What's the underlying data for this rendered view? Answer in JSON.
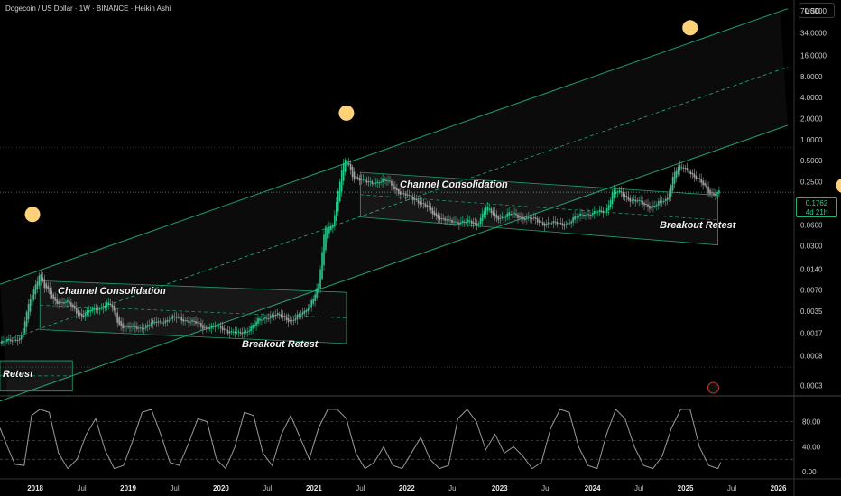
{
  "header": {
    "title": "Dogecoin / US Dollar · 1W · BINANCE · Heikin Ashi"
  },
  "currency": "USD",
  "price_label": {
    "price": "0.1762",
    "countdown": "4d 21h"
  },
  "annotations": {
    "retest_left": "Retest",
    "channel_consolidation_1": "Channel Consolidation",
    "breakout_retest_1": "Breakout Retest",
    "channel_consolidation_2": "Channel Consolidation",
    "breakout_retest_2": "Breakout Retest"
  },
  "colors": {
    "background": "#000000",
    "candle_up": "#26c98a",
    "candle_down": "#9e9e9e",
    "channel": "#1e9e74",
    "indicator": "#9a9a9a",
    "grid": "#2a2a2a",
    "marker": "#ffd27a"
  },
  "chart_data": [
    {
      "type": "candlestick",
      "title": "Dogecoin / US Dollar · 1W · BINANCE · Heikin Ashi",
      "scale": "log",
      "y_ticks": [
        70,
        34,
        16,
        8,
        4,
        2,
        1,
        0.5,
        0.25,
        0.125,
        0.06,
        0.03,
        0.014,
        0.007,
        0.0035,
        0.0017,
        0.0008,
        0.0003
      ],
      "y_tick_labels": [
        "70.0000",
        "34.0000",
        "16.0000",
        "8.0000",
        "4.0000",
        "2.0000",
        "1.0000",
        "0.5000",
        "0.2500",
        "0.1250",
        "0.0600",
        "0.0300",
        "0.0140",
        "0.0070",
        "0.0035",
        "0.0017",
        "0.0008",
        "0.0003"
      ],
      "x_ticks": [
        "2018",
        "Jul",
        "2019",
        "Jul",
        "2020",
        "Jul",
        "2021",
        "Jul",
        "2022",
        "Jul",
        "2023",
        "Jul",
        "2024",
        "Jul",
        "2025",
        "Jul",
        "2026"
      ],
      "x_tick_values": [
        2018.0,
        2018.5,
        2019.0,
        2019.5,
        2020.0,
        2020.5,
        2021.0,
        2021.5,
        2022.0,
        2022.5,
        2023.0,
        2023.5,
        2024.0,
        2024.5,
        2025.0,
        2025.5,
        2026.0
      ],
      "x_range": [
        2017.62,
        2026.17
      ],
      "y_range": [
        0.00022,
        100
      ],
      "price_path": [
        [
          2017.62,
          0.0012
        ],
        [
          2017.85,
          0.0015
        ],
        [
          2017.95,
          0.0055
        ],
        [
          2018.05,
          0.013
        ],
        [
          2018.1,
          0.0075
        ],
        [
          2018.2,
          0.005
        ],
        [
          2018.35,
          0.0045
        ],
        [
          2018.5,
          0.003
        ],
        [
          2018.65,
          0.0038
        ],
        [
          2018.8,
          0.0045
        ],
        [
          2018.9,
          0.0023
        ],
        [
          2019.0,
          0.002
        ],
        [
          2019.1,
          0.002
        ],
        [
          2019.3,
          0.0024
        ],
        [
          2019.5,
          0.0028
        ],
        [
          2019.6,
          0.0027
        ],
        [
          2019.8,
          0.0021
        ],
        [
          2020.0,
          0.002
        ],
        [
          2020.2,
          0.0016
        ],
        [
          2020.4,
          0.0025
        ],
        [
          2020.55,
          0.0032
        ],
        [
          2020.75,
          0.0026
        ],
        [
          2020.9,
          0.0033
        ],
        [
          2021.05,
          0.008
        ],
        [
          2021.12,
          0.055
        ],
        [
          2021.2,
          0.06
        ],
        [
          2021.3,
          0.35
        ],
        [
          2021.35,
          0.55
        ],
        [
          2021.42,
          0.3
        ],
        [
          2021.55,
          0.24
        ],
        [
          2021.65,
          0.25
        ],
        [
          2021.8,
          0.25
        ],
        [
          2021.95,
          0.16
        ],
        [
          2022.1,
          0.14
        ],
        [
          2022.3,
          0.085
        ],
        [
          2022.45,
          0.065
        ],
        [
          2022.6,
          0.068
        ],
        [
          2022.75,
          0.06
        ],
        [
          2022.85,
          0.11
        ],
        [
          2022.95,
          0.075
        ],
        [
          2023.1,
          0.085
        ],
        [
          2023.3,
          0.075
        ],
        [
          2023.45,
          0.065
        ],
        [
          2023.6,
          0.062
        ],
        [
          2023.75,
          0.065
        ],
        [
          2023.9,
          0.09
        ],
        [
          2024.0,
          0.085
        ],
        [
          2024.15,
          0.1
        ],
        [
          2024.22,
          0.18
        ],
        [
          2024.3,
          0.17
        ],
        [
          2024.45,
          0.13
        ],
        [
          2024.65,
          0.11
        ],
        [
          2024.8,
          0.14
        ],
        [
          2024.88,
          0.35
        ],
        [
          2024.95,
          0.4
        ],
        [
          2025.05,
          0.35
        ],
        [
          2025.15,
          0.25
        ],
        [
          2025.25,
          0.18
        ],
        [
          2025.3,
          0.17
        ],
        [
          2025.38,
          0.1762
        ]
      ],
      "last_price": 0.1762
    },
    {
      "type": "line",
      "name": "Stochastic RSI",
      "y_ticks": [
        80,
        40,
        0
      ],
      "y_tick_labels": [
        "80.00",
        "40.00",
        "0.00"
      ],
      "y_range": [
        -10,
        120
      ],
      "reference_lines": [
        80,
        50,
        20
      ],
      "x": [
        2017.62,
        2017.7,
        2017.78,
        2017.88,
        2017.96,
        2018.05,
        2018.15,
        2018.25,
        2018.35,
        2018.45,
        2018.55,
        2018.65,
        2018.75,
        2018.85,
        2018.95,
        2019.05,
        2019.15,
        2019.25,
        2019.35,
        2019.45,
        2019.55,
        2019.65,
        2019.75,
        2019.85,
        2019.95,
        2020.05,
        2020.15,
        2020.25,
        2020.35,
        2020.45,
        2020.55,
        2020.65,
        2020.75,
        2020.85,
        2020.95,
        2021.05,
        2021.15,
        2021.25,
        2021.35,
        2021.45,
        2021.55,
        2021.65,
        2021.75,
        2021.85,
        2021.95,
        2022.05,
        2022.15,
        2022.25,
        2022.35,
        2022.45,
        2022.55,
        2022.65,
        2022.75,
        2022.85,
        2022.95,
        2023.05,
        2023.15,
        2023.25,
        2023.35,
        2023.45,
        2023.55,
        2023.65,
        2023.75,
        2023.85,
        2023.95,
        2024.05,
        2024.15,
        2024.25,
        2024.35,
        2024.45,
        2024.55,
        2024.65,
        2024.75,
        2024.85,
        2024.95,
        2025.05,
        2025.15,
        2025.25,
        2025.35,
        2025.38
      ],
      "values": [
        70,
        40,
        12,
        10,
        90,
        100,
        95,
        30,
        5,
        20,
        60,
        85,
        35,
        5,
        10,
        50,
        95,
        100,
        60,
        15,
        10,
        45,
        85,
        80,
        20,
        5,
        40,
        95,
        90,
        30,
        10,
        60,
        90,
        55,
        20,
        70,
        100,
        100,
        85,
        30,
        5,
        15,
        40,
        10,
        5,
        30,
        55,
        20,
        5,
        10,
        85,
        100,
        80,
        35,
        60,
        30,
        40,
        25,
        5,
        15,
        70,
        100,
        95,
        40,
        10,
        5,
        60,
        100,
        85,
        40,
        10,
        5,
        25,
        70,
        100,
        100,
        40,
        10,
        5,
        15
      ]
    }
  ]
}
